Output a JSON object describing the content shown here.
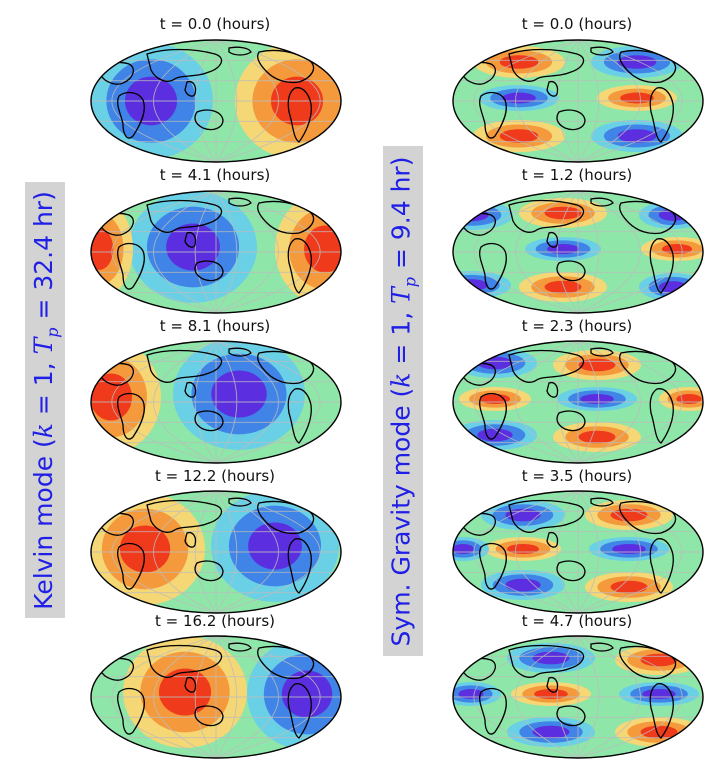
{
  "columns": [
    {
      "label_text": "Kelvin mode (",
      "label_k_var": "k",
      "label_mid": " = 1, ",
      "label_T_var": "T",
      "label_sub": "p",
      "label_end": " = 32.4 hr)",
      "panels": [
        {
          "title": "t = 0.0 (hours)"
        },
        {
          "title": "t = 4.1 (hours)"
        },
        {
          "title": "t = 8.1 (hours)"
        },
        {
          "title": "t = 12.2 (hours)"
        },
        {
          "title": "t = 16.2 (hours)"
        }
      ]
    },
    {
      "label_text": "Sym. Gravity mode (",
      "label_k_var": "k",
      "label_mid": " = 1, ",
      "label_T_var": "T",
      "label_sub": "p",
      "label_end": " = 9.4 hr)",
      "panels": [
        {
          "title": "t = 0.0 (hours)"
        },
        {
          "title": "t = 1.2 (hours)"
        },
        {
          "title": "t = 2.3 (hours)"
        },
        {
          "title": "t = 3.5 (hours)"
        },
        {
          "title": "t = 4.7 (hours)"
        }
      ]
    }
  ],
  "colors": {
    "background_field": "#8ee6a8",
    "warm_outer": "#f5d776",
    "warm_mid": "#f59a3c",
    "warm_core": "#ef3a1c",
    "cool_outer": "#6ad0e6",
    "cool_mid": "#3f84e6",
    "cool_core": "#5b2fe0",
    "label_text": "#1f1fe6",
    "label_box": "#d3d3d3"
  }
}
